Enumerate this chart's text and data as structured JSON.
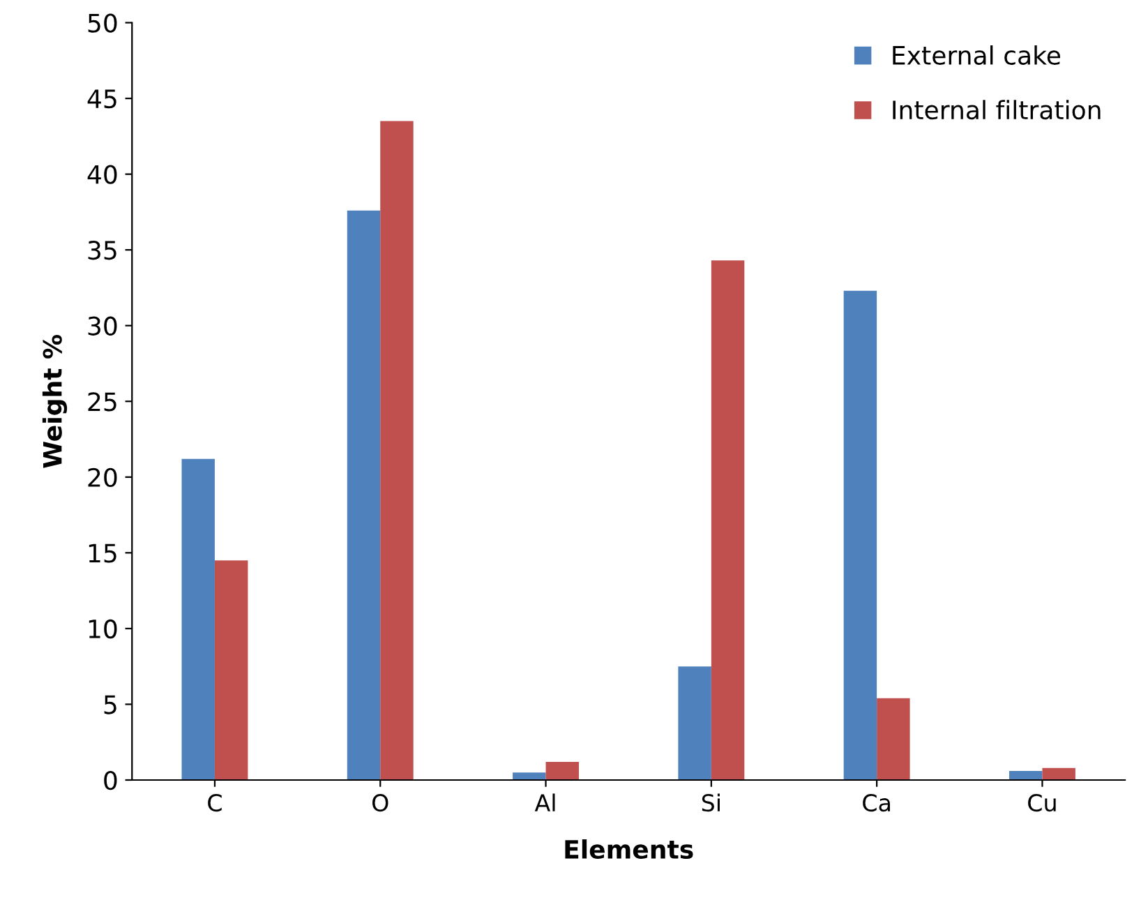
{
  "chart_data": {
    "type": "bar",
    "xlabel": "Elements",
    "ylabel": "Weight %",
    "categories": [
      "C",
      "O",
      "Al",
      "Si",
      "Ca",
      "Cu"
    ],
    "series": [
      {
        "name": "External cake",
        "color": "#4f81bd",
        "values": [
          21.2,
          37.6,
          0.5,
          7.5,
          32.3,
          0.6
        ]
      },
      {
        "name": "Internal filtration",
        "color": "#c0504d",
        "values": [
          14.5,
          43.5,
          1.2,
          34.3,
          5.4,
          0.8
        ]
      }
    ],
    "ylim": [
      0,
      50
    ],
    "yticks": [
      0,
      5,
      10,
      15,
      20,
      25,
      30,
      35,
      40,
      45,
      50
    ],
    "grid": false,
    "legend": "top right"
  }
}
